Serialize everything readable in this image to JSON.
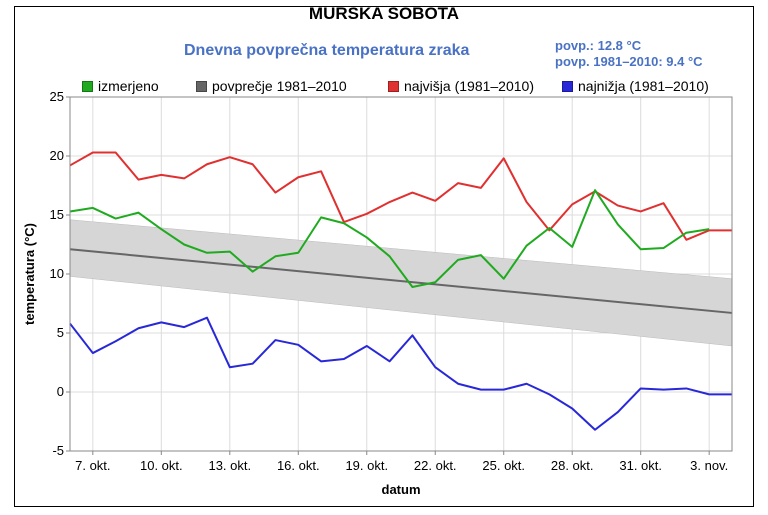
{
  "chart_data": {
    "type": "line",
    "title": "MURSKA SOBOTA",
    "subtitle": "Dnevna povprečna temperatura zraka",
    "stats": [
      "povp.: 12.8 °C",
      "povp. 1981–2010: 9.4 °C"
    ],
    "xlabel": "datum",
    "ylabel": "temperatura (°C)",
    "ylim": [
      -5,
      25
    ],
    "yticks": [
      "25",
      "20",
      "15",
      "10",
      "5",
      "0",
      "-5"
    ],
    "xtick_labels": [
      "7. okt.",
      "10. okt.",
      "13. okt.",
      "16. okt.",
      "19. okt.",
      "22. okt.",
      "25. okt.",
      "28. okt.",
      "31. okt.",
      "3. nov."
    ],
    "x_start_day": 6,
    "x_end_day": 35,
    "xtick_days": [
      7,
      10,
      13,
      16,
      19,
      22,
      25,
      28,
      31,
      34
    ],
    "colors": {
      "izmerjeno": "#1faa1f",
      "povprecje": "#666666",
      "najvisja": "#e03030",
      "najnizja": "#2828d8",
      "band": "#d6d6d6"
    },
    "legend": [
      {
        "label": "izmerjeno",
        "color": "#1faa1f"
      },
      {
        "label": "povprečje 1981–2010",
        "color": "#666666"
      },
      {
        "label": "najvišja (1981–2010)",
        "color": "#e03030"
      },
      {
        "label": "najnižja (1981–2010)",
        "color": "#2828d8"
      }
    ],
    "series": [
      {
        "name": "najvišja (1981–2010)",
        "color": "#e03030",
        "values": [
          19.2,
          20.3,
          20.3,
          18.0,
          18.4,
          18.1,
          19.3,
          19.9,
          19.3,
          16.9,
          18.2,
          18.7,
          14.4,
          15.1,
          16.1,
          16.9,
          16.2,
          17.7,
          17.3,
          19.8,
          16.1,
          13.7,
          15.9,
          17.0,
          15.8,
          15.3,
          16.0,
          12.9,
          13.7,
          13.7
        ]
      },
      {
        "name": "izmerjeno",
        "color": "#1faa1f",
        "values": [
          15.3,
          15.6,
          14.7,
          15.2,
          13.8,
          12.5,
          11.8,
          11.9,
          10.2,
          11.5,
          11.8,
          14.8,
          14.3,
          13.1,
          11.5,
          8.9,
          9.3,
          11.2,
          11.6,
          9.6,
          12.4,
          13.9,
          12.3,
          17.1,
          14.2,
          12.1,
          12.2,
          13.5,
          13.8
        ]
      },
      {
        "name": "najnižja (1981–2010)",
        "color": "#2828d8",
        "values": [
          5.8,
          3.3,
          4.3,
          5.4,
          5.9,
          5.5,
          6.3,
          2.1,
          2.4,
          4.4,
          4.0,
          2.6,
          2.8,
          3.9,
          2.6,
          4.8,
          2.1,
          0.7,
          0.2,
          0.2,
          0.7,
          -0.2,
          -1.4,
          -3.2,
          -1.7,
          0.3,
          0.2,
          0.3,
          -0.2,
          -0.2
        ]
      }
    ],
    "average": {
      "name": "povprečje 1981–2010",
      "start": 12.1,
      "end": 6.7
    },
    "band": {
      "upper_start": 14.6,
      "upper_end": 9.6,
      "lower_start": 9.8,
      "lower_end": 3.9
    }
  }
}
